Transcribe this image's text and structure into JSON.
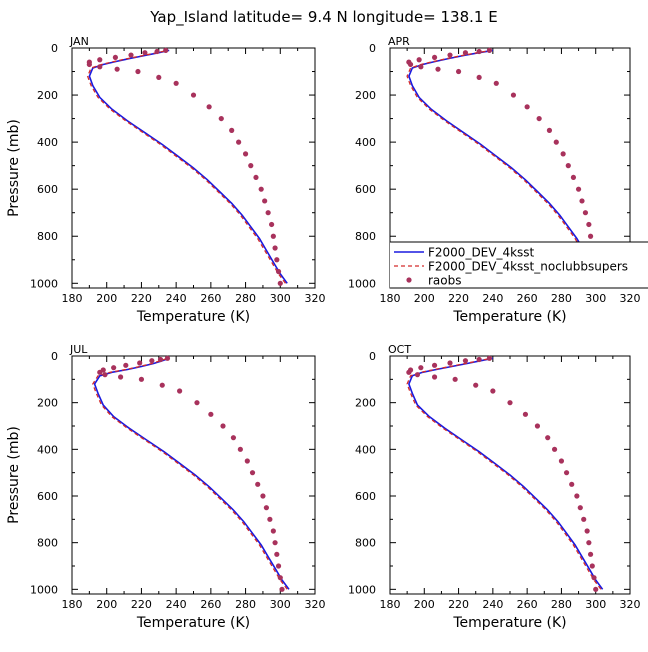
{
  "figure": {
    "title": "Yap_Island  latitude= 9.4 N longitude= 138.1 E",
    "xlabel": "Temperature (K)",
    "ylabel": "Pressure (mb)",
    "xticks": [
      "180",
      "200",
      "220",
      "240",
      "260",
      "280",
      "300",
      "320"
    ],
    "yticks": [
      "0",
      "200",
      "400",
      "600",
      "800",
      "1000"
    ],
    "colors": {
      "model1": "#1a1adf",
      "model2": "#d42a2a",
      "obs": "#a8325c"
    }
  },
  "legend": {
    "entries": [
      "F2000_DEV_4ksst",
      "F2000_DEV_4ksst_noclubbsupers",
      "raobs"
    ]
  },
  "chart_data": [
    {
      "type": "line",
      "panel": "JAN",
      "xlim": [
        180,
        320
      ],
      "ylim": [
        1020,
        0
      ],
      "yaxis": "pressure (inverted)",
      "series": [
        {
          "name": "F2000_DEV_4ksst",
          "style": "solid",
          "x": [
            304,
            300,
            296,
            292,
            288,
            283,
            278,
            272,
            265,
            258,
            250,
            241,
            232,
            222,
            212,
            203,
            196,
            192,
            190,
            192,
            198,
            205,
            213,
            222,
            230,
            236
          ],
          "y": [
            1000,
            960,
            910,
            860,
            810,
            760,
            710,
            660,
            610,
            560,
            510,
            460,
            410,
            360,
            310,
            260,
            210,
            160,
            120,
            85,
            70,
            58,
            45,
            32,
            20,
            10
          ]
        },
        {
          "name": "F2000_DEV_4ksst_noclubbsupers",
          "style": "dashed",
          "x": [
            303,
            299,
            295,
            291,
            287,
            282,
            277,
            271,
            264,
            257,
            249,
            240,
            231,
            221,
            211,
            202,
            195,
            191,
            189,
            191,
            197,
            204,
            212,
            221,
            229,
            235
          ],
          "y": [
            1000,
            960,
            910,
            860,
            810,
            760,
            710,
            660,
            610,
            560,
            510,
            460,
            410,
            360,
            310,
            260,
            210,
            160,
            120,
            85,
            70,
            58,
            45,
            32,
            20,
            10
          ]
        },
        {
          "name": "raobs",
          "style": "dots",
          "x": [
            300,
            299,
            298,
            297,
            296,
            295,
            293,
            291,
            289,
            286,
            283,
            280,
            276,
            272,
            266,
            259,
            250,
            240,
            230,
            218,
            206,
            196,
            190,
            190,
            196,
            205,
            214,
            222,
            229,
            234
          ],
          "y": [
            1000,
            950,
            900,
            850,
            800,
            750,
            700,
            650,
            600,
            550,
            500,
            450,
            400,
            350,
            300,
            250,
            200,
            150,
            125,
            100,
            90,
            80,
            70,
            60,
            50,
            40,
            30,
            20,
            15,
            10
          ]
        }
      ]
    },
    {
      "type": "line",
      "panel": "APR",
      "xlim": [
        180,
        320
      ],
      "ylim": [
        1020,
        0
      ],
      "series": [
        {
          "name": "F2000_DEV_4ksst",
          "style": "solid",
          "x": [
            305,
            301,
            297,
            293,
            289,
            284,
            279,
            273,
            266,
            259,
            251,
            242,
            233,
            223,
            213,
            204,
            197,
            193,
            191,
            193,
            199,
            206,
            214,
            223,
            232,
            240
          ],
          "y": [
            1000,
            960,
            910,
            860,
            810,
            760,
            710,
            660,
            610,
            560,
            510,
            460,
            410,
            360,
            310,
            260,
            210,
            160,
            120,
            85,
            70,
            58,
            45,
            32,
            20,
            10
          ]
        },
        {
          "name": "F2000_DEV_4ksst_noclubbsupers",
          "style": "dashed",
          "x": [
            304,
            300,
            296,
            292,
            288,
            283,
            278,
            272,
            265,
            258,
            250,
            241,
            232,
            222,
            212,
            203,
            196,
            192,
            190,
            192,
            198,
            205,
            213,
            222,
            231,
            239
          ],
          "y": [
            1000,
            960,
            910,
            860,
            810,
            760,
            710,
            660,
            610,
            560,
            510,
            460,
            410,
            360,
            310,
            260,
            210,
            160,
            120,
            85,
            70,
            58,
            45,
            32,
            20,
            10
          ]
        },
        {
          "name": "raobs",
          "style": "dots",
          "x": [
            301,
            300,
            299,
            298,
            297,
            296,
            294,
            292,
            290,
            287,
            284,
            281,
            277,
            273,
            267,
            260,
            252,
            242,
            232,
            220,
            208,
            198,
            192,
            191,
            197,
            206,
            215,
            224,
            232,
            238
          ],
          "y": [
            1000,
            950,
            900,
            850,
            800,
            750,
            700,
            650,
            600,
            550,
            500,
            450,
            400,
            350,
            300,
            250,
            200,
            150,
            125,
            100,
            90,
            80,
            70,
            60,
            50,
            40,
            30,
            20,
            15,
            10
          ]
        }
      ]
    },
    {
      "type": "line",
      "panel": "JUL",
      "xlim": [
        180,
        320
      ],
      "ylim": [
        1020,
        0
      ],
      "series": [
        {
          "name": "F2000_DEV_4ksst",
          "style": "solid",
          "x": [
            305,
            301,
            297,
            293,
            289,
            284,
            279,
            273,
            266,
            259,
            251,
            242,
            233,
            223,
            213,
            204,
            198,
            195,
            193,
            196,
            203,
            212,
            220,
            227,
            232,
            236
          ],
          "y": [
            1000,
            960,
            910,
            860,
            810,
            760,
            710,
            660,
            610,
            560,
            510,
            460,
            410,
            360,
            310,
            260,
            210,
            160,
            120,
            85,
            70,
            58,
            45,
            32,
            20,
            10
          ]
        },
        {
          "name": "F2000_DEV_4ksst_noclubbsupers",
          "style": "dashed",
          "x": [
            304,
            300,
            296,
            292,
            288,
            283,
            278,
            272,
            265,
            258,
            250,
            241,
            232,
            222,
            212,
            203,
            197,
            194,
            192,
            195,
            202,
            211,
            219,
            226,
            231,
            235
          ],
          "y": [
            1000,
            960,
            910,
            860,
            810,
            760,
            710,
            660,
            610,
            560,
            510,
            460,
            410,
            360,
            310,
            260,
            210,
            160,
            120,
            85,
            70,
            58,
            45,
            32,
            20,
            10
          ]
        },
        {
          "name": "raobs",
          "style": "dots",
          "x": [
            301,
            300,
            299,
            298,
            297,
            296,
            294,
            292,
            290,
            287,
            284,
            281,
            277,
            273,
            267,
            260,
            252,
            242,
            232,
            220,
            208,
            199,
            196,
            198,
            204,
            211,
            219,
            226,
            231,
            235
          ],
          "y": [
            1000,
            950,
            900,
            850,
            800,
            750,
            700,
            650,
            600,
            550,
            500,
            450,
            400,
            350,
            300,
            250,
            200,
            150,
            125,
            100,
            90,
            80,
            70,
            60,
            50,
            40,
            30,
            20,
            15,
            10
          ]
        }
      ]
    },
    {
      "type": "line",
      "panel": "OCT",
      "xlim": [
        180,
        320
      ],
      "ylim": [
        1020,
        0
      ],
      "series": [
        {
          "name": "F2000_DEV_4ksst",
          "style": "solid",
          "x": [
            304,
            300,
            296,
            292,
            288,
            283,
            278,
            272,
            265,
            258,
            250,
            241,
            232,
            222,
            212,
            203,
            196,
            193,
            191,
            193,
            199,
            207,
            216,
            225,
            233,
            240
          ],
          "y": [
            1000,
            960,
            910,
            860,
            810,
            760,
            710,
            660,
            610,
            560,
            510,
            460,
            410,
            360,
            310,
            260,
            210,
            160,
            120,
            85,
            70,
            58,
            45,
            32,
            20,
            10
          ]
        },
        {
          "name": "F2000_DEV_4ksst_noclubbsupers",
          "style": "dashed",
          "x": [
            303,
            299,
            295,
            291,
            287,
            282,
            277,
            271,
            264,
            257,
            249,
            240,
            231,
            221,
            211,
            202,
            195,
            192,
            190,
            192,
            198,
            206,
            215,
            224,
            232,
            239
          ],
          "y": [
            1000,
            960,
            910,
            860,
            810,
            760,
            710,
            660,
            610,
            560,
            510,
            460,
            410,
            360,
            310,
            260,
            210,
            160,
            120,
            85,
            70,
            58,
            45,
            32,
            20,
            10
          ]
        },
        {
          "name": "raobs",
          "style": "dots",
          "x": [
            300,
            299,
            298,
            297,
            296,
            295,
            293,
            291,
            289,
            286,
            283,
            280,
            276,
            272,
            266,
            259,
            250,
            240,
            230,
            218,
            206,
            196,
            191,
            192,
            198,
            206,
            215,
            224,
            232,
            238
          ],
          "y": [
            1000,
            950,
            900,
            850,
            800,
            750,
            700,
            650,
            600,
            550,
            500,
            450,
            400,
            350,
            300,
            250,
            200,
            150,
            125,
            100,
            90,
            80,
            70,
            60,
            50,
            40,
            30,
            20,
            15,
            10
          ]
        }
      ]
    }
  ]
}
